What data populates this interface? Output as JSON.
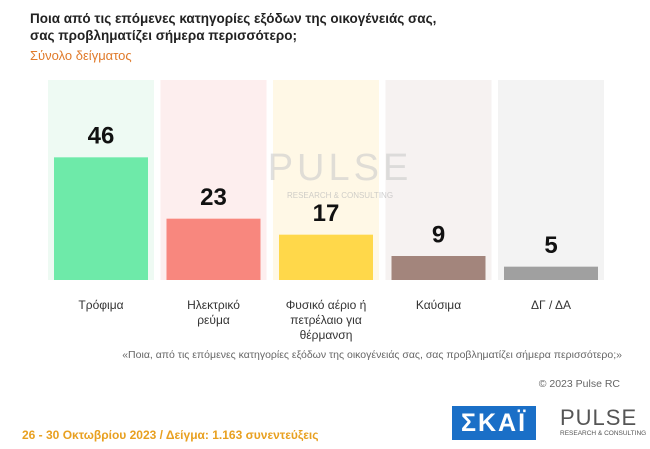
{
  "chart_data": {
    "type": "bar",
    "title": "Ποια από τις επόμενες κατηγορίες εξόδων της οικογένειάς σας, σας προβληματίζει σήμερα περισσότερο;",
    "subtitle": "Σύνολο δείγματος",
    "categories": [
      "Τρόφιμα",
      "Ηλεκτρικό ρεύμα",
      "Φυσικό αέριο ή πετρέλαιο για θέρμανση",
      "Καύσιμα",
      "ΔΓ / ΔΑ"
    ],
    "values": [
      46,
      23,
      17,
      9,
      5
    ],
    "colors": [
      "#6eeaa9",
      "#f8877e",
      "#ffd84a",
      "#a3857c",
      "#a0a0a0"
    ],
    "background_colors": [
      "#eefaf3",
      "#fdeeee",
      "#fff8e6",
      "#f6f2f1",
      "#f3f3f3"
    ],
    "ylim": [
      0,
      75
    ],
    "watermark": [
      "PULSE",
      "RESEARCH & CONSULTING"
    ],
    "question_note": "«Ποια, από τις επόμενες κατηγορίες εξόδων της οικογένειάς σας, σας προβληματίζει σήμερα περισσότερο;»",
    "copyright": "© 2023 Pulse RC",
    "footer": "26 - 30 Οκτωβρίου 2023 / Δείγμα: 1.163 συνεντεύξεις",
    "logos": [
      "ΣΚΑΪ",
      "PULSE",
      "RESEARCH & CONSULTING"
    ]
  }
}
